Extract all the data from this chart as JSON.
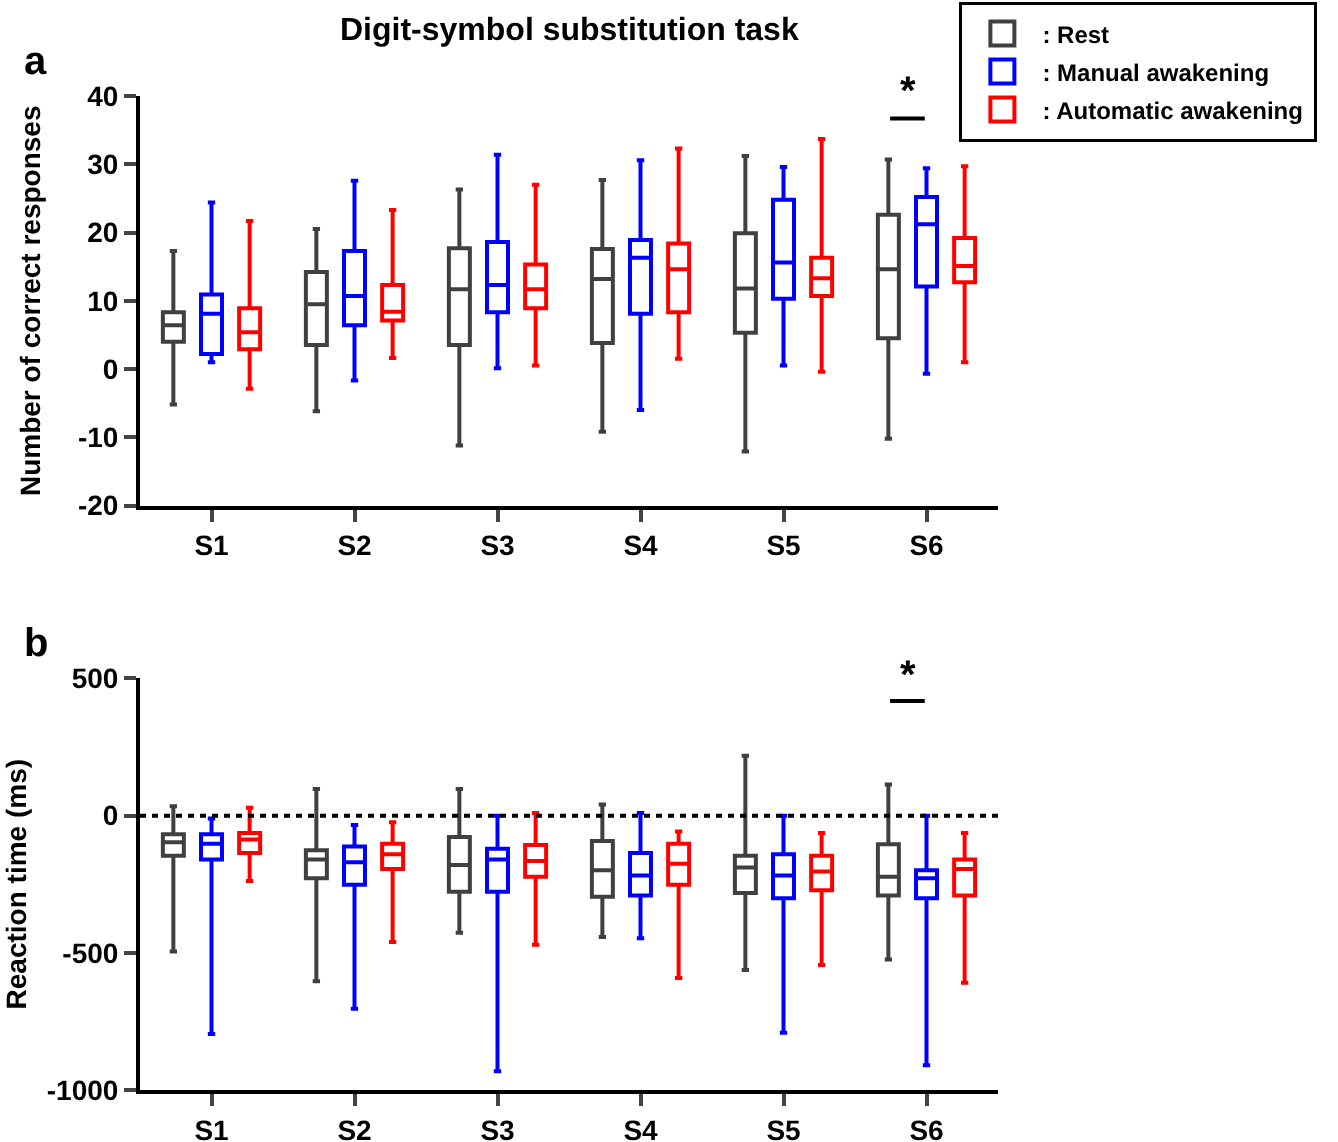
{
  "chart_data": [
    {
      "type": "box",
      "title": "Digit-symbol substitution task",
      "ylabel": "Number of correct responses",
      "categories": [
        "S1",
        "S2",
        "S3",
        "S4",
        "S5",
        "S6"
      ],
      "ylim": [
        -20,
        40
      ],
      "yticks": [
        -20,
        -10,
        0,
        10,
        20,
        30,
        40
      ],
      "legend": "top right",
      "annotations": [
        "a",
        "*"
      ],
      "series": [
        {
          "name": ": Rest",
          "color": "#404040",
          "boxes": [
            {
              "low": -5.2,
              "q1": 4.0,
              "median": 6.4,
              "q3": 8.3,
              "high": 17.3
            },
            {
              "low": -6.2,
              "q1": 3.5,
              "median": 9.5,
              "q3": 14.2,
              "high": 20.5
            },
            {
              "low": -11.2,
              "q1": 3.5,
              "median": 11.7,
              "q3": 17.7,
              "high": 26.3
            },
            {
              "low": -9.2,
              "q1": 3.8,
              "median": 13.2,
              "q3": 17.6,
              "high": 27.7
            },
            {
              "low": -12.1,
              "q1": 5.3,
              "median": 11.8,
              "q3": 19.9,
              "high": 31.2
            },
            {
              "low": -10.2,
              "q1": 4.5,
              "median": 14.6,
              "q3": 22.6,
              "high": 30.7
            }
          ]
        },
        {
          "name": ": Manual awakening",
          "color": "#0000ff",
          "boxes": [
            {
              "low": 1.0,
              "q1": 2.2,
              "median": 8.1,
              "q3": 10.9,
              "high": 24.4
            },
            {
              "low": -1.7,
              "q1": 6.4,
              "median": 10.7,
              "q3": 17.3,
              "high": 27.6
            },
            {
              "low": 0.1,
              "q1": 8.3,
              "median": 12.3,
              "q3": 18.6,
              "high": 31.4
            },
            {
              "low": -6.0,
              "q1": 8.1,
              "median": 16.3,
              "q3": 18.9,
              "high": 30.6
            },
            {
              "low": 0.5,
              "q1": 10.3,
              "median": 15.6,
              "q3": 24.8,
              "high": 29.6
            },
            {
              "low": -0.7,
              "q1": 12.1,
              "median": 21.2,
              "q3": 25.2,
              "high": 29.4
            }
          ]
        },
        {
          "name": ": Automatic awakening",
          "color": "#ff0000",
          "boxes": [
            {
              "low": -2.9,
              "q1": 2.9,
              "median": 5.4,
              "q3": 8.9,
              "high": 21.7
            },
            {
              "low": 1.6,
              "q1": 7.1,
              "median": 8.4,
              "q3": 12.3,
              "high": 23.3
            },
            {
              "low": 0.5,
              "q1": 8.9,
              "median": 11.7,
              "q3": 15.3,
              "high": 27.0
            },
            {
              "low": 1.5,
              "q1": 8.3,
              "median": 14.6,
              "q3": 18.4,
              "high": 32.3
            },
            {
              "low": -0.4,
              "q1": 10.7,
              "median": 13.3,
              "q3": 16.3,
              "high": 33.7
            },
            {
              "low": 1.0,
              "q1": 12.7,
              "median": 15.1,
              "q3": 19.2,
              "high": 29.7
            }
          ]
        }
      ]
    },
    {
      "type": "box",
      "ylabel": "Reaction time (ms)",
      "categories": [
        "S1",
        "S2",
        "S3",
        "S4",
        "S5",
        "S6"
      ],
      "ylim": [
        -1000,
        500
      ],
      "yticks": [
        -1000,
        -500,
        0,
        500
      ],
      "legend": false,
      "annotations": [
        "b",
        "*"
      ],
      "ref_lines": [
        {
          "axis": "y",
          "value": 0,
          "color": "#000000",
          "line_style": "dotted"
        }
      ],
      "series": [
        {
          "color": "#404040",
          "boxes": [
            {
              "low": -495,
              "q1": -146,
              "median": -97,
              "q3": -68,
              "high": 34
            },
            {
              "low": -604,
              "q1": -228,
              "median": -160,
              "q3": -126,
              "high": 97
            },
            {
              "low": -427,
              "q1": -277,
              "median": -180,
              "q3": -78,
              "high": 97
            },
            {
              "low": -442,
              "q1": -296,
              "median": -199,
              "q3": -92,
              "high": 41
            },
            {
              "low": -563,
              "q1": -282,
              "median": -189,
              "q3": -146,
              "high": 218
            },
            {
              "low": -524,
              "q1": -291,
              "median": -223,
              "q3": -104,
              "high": 114
            }
          ]
        },
        {
          "color": "#0000ff",
          "boxes": [
            {
              "low": -796,
              "q1": -160,
              "median": -102,
              "q3": -68,
              "high": -10
            },
            {
              "low": -704,
              "q1": -252,
              "median": -170,
              "q3": -112,
              "high": -34
            },
            {
              "low": -932,
              "q1": -277,
              "median": -160,
              "q3": -121,
              "high": 0
            },
            {
              "low": -447,
              "q1": -291,
              "median": -218,
              "q3": -136,
              "high": 10
            },
            {
              "low": -791,
              "q1": -301,
              "median": -218,
              "q3": -141,
              "high": 0
            },
            {
              "low": -910,
              "q1": -301,
              "median": -228,
              "q3": -199,
              "high": 0
            }
          ]
        },
        {
          "color": "#ff0000",
          "boxes": [
            {
              "low": -238,
              "q1": -136,
              "median": -87,
              "q3": -63,
              "high": 29
            },
            {
              "low": -461,
              "q1": -194,
              "median": -141,
              "q3": -102,
              "high": -24
            },
            {
              "low": -471,
              "q1": -223,
              "median": -165,
              "q3": -107,
              "high": 10
            },
            {
              "low": -592,
              "q1": -252,
              "median": -175,
              "q3": -102,
              "high": -58
            },
            {
              "low": -544,
              "q1": -272,
              "median": -204,
              "q3": -146,
              "high": -63
            },
            {
              "low": -609,
              "q1": -291,
              "median": -194,
              "q3": -160,
              "high": -63
            }
          ]
        }
      ]
    }
  ]
}
